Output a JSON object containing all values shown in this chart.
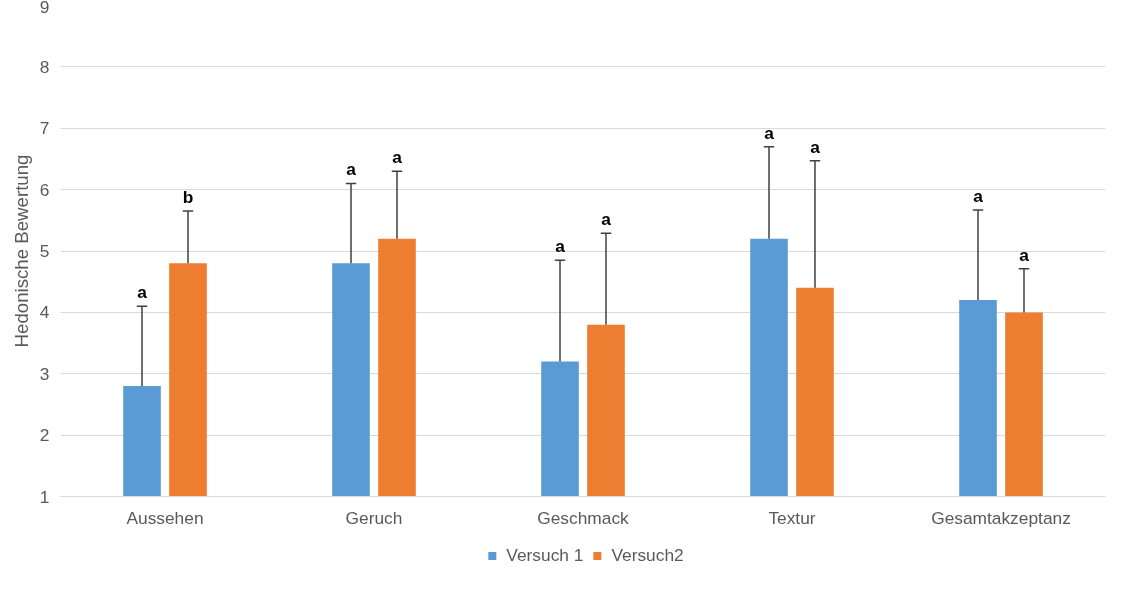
{
  "chart_data": {
    "type": "bar",
    "ylabel": "Hedonische Bewertung",
    "categories": [
      "Aussehen",
      "Geruch",
      "Geschmack",
      "Textur",
      "Gesamtakzeptanz"
    ],
    "series": [
      {
        "name": "Versuch 1",
        "color": "#5b9bd5",
        "values": [
          2.8,
          4.8,
          3.2,
          5.2,
          4.2
        ],
        "errors": [
          [
            2.8,
            4.1
          ],
          [
            4.8,
            6.1
          ],
          [
            3.2,
            4.85
          ],
          [
            5.2,
            6.7
          ],
          [
            4.2,
            5.67
          ]
        ]
      },
      {
        "name": "Versuch2",
        "color": "#ed7d31",
        "values": [
          4.8,
          5.2,
          3.8,
          4.4,
          4.0
        ],
        "errors": [
          [
            4.8,
            5.65
          ],
          [
            5.2,
            6.3
          ],
          [
            3.8,
            5.29
          ],
          [
            4.4,
            6.47
          ],
          [
            4.0,
            4.71
          ]
        ]
      }
    ],
    "annotations": [
      "a",
      "b",
      "a",
      "a",
      "a",
      "a",
      "a",
      "a",
      "a",
      "a"
    ],
    "ylim": [
      1,
      9
    ],
    "yticks": [
      1,
      2,
      3,
      4,
      5,
      6,
      7,
      8,
      9
    ],
    "grid": "y",
    "legend": "bottom"
  }
}
